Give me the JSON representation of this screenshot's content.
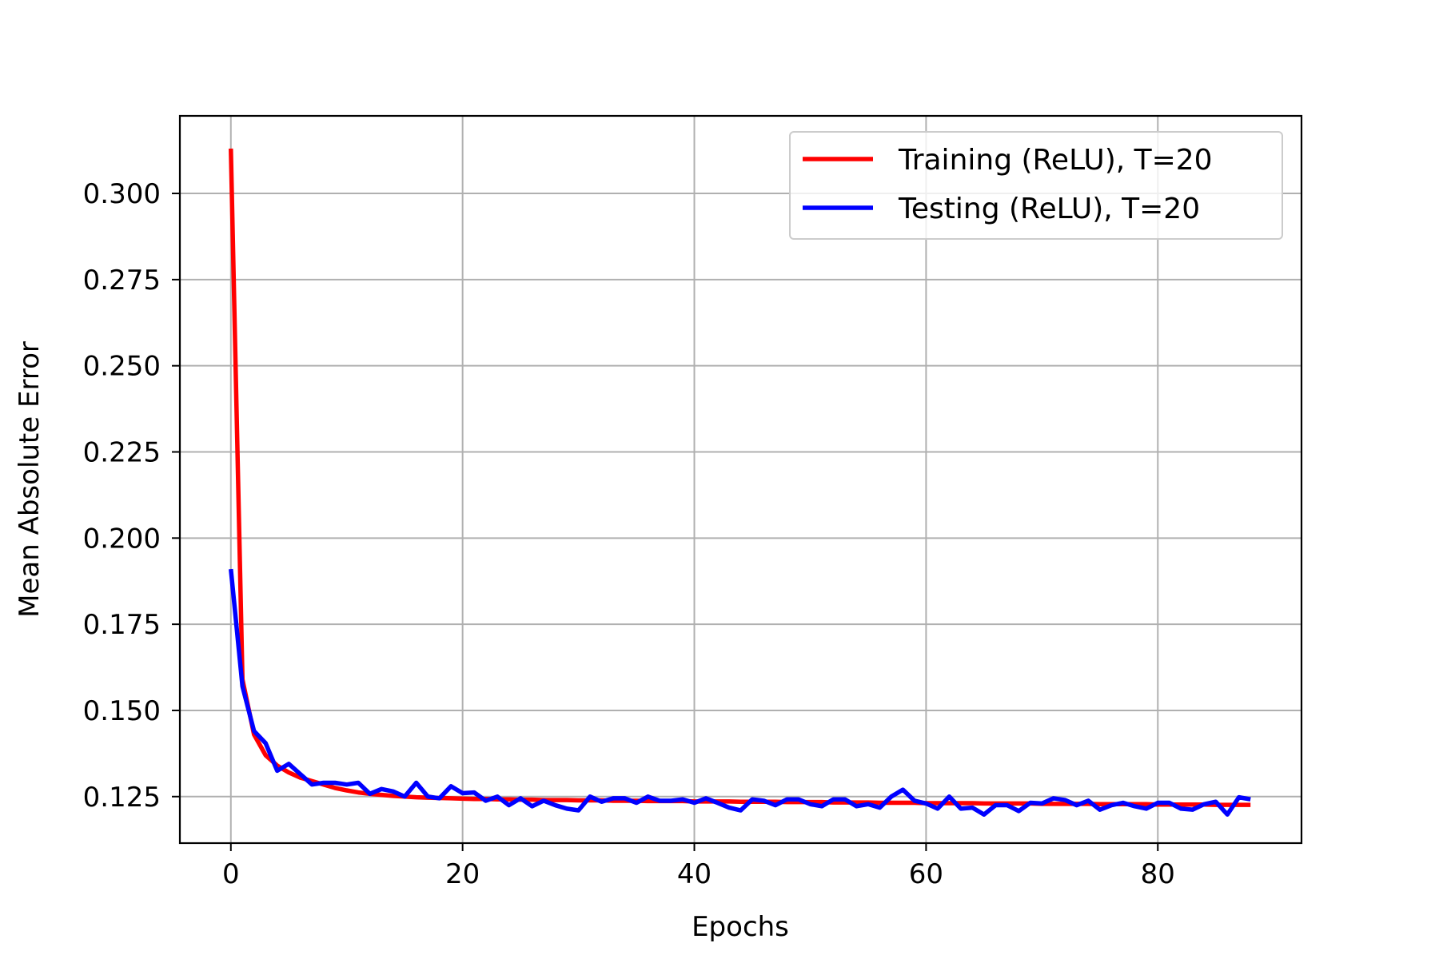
{
  "chart_data": {
    "type": "line",
    "title": "",
    "xlabel": "Epochs",
    "ylabel": "Mean Absolute Error",
    "xlim": [
      -4.4,
      92.4
    ],
    "ylim": [
      0.1115,
      0.3225
    ],
    "xticks": [
      0,
      20,
      40,
      60,
      80
    ],
    "xtick_labels": [
      "0",
      "20",
      "40",
      "60",
      "80"
    ],
    "yticks": [
      0.125,
      0.15,
      0.175,
      0.2,
      0.225,
      0.25,
      0.275,
      0.3
    ],
    "ytick_labels": [
      "0.125",
      "0.150",
      "0.175",
      "0.200",
      "0.225",
      "0.250",
      "0.275",
      "0.300"
    ],
    "grid": true,
    "legend_position": "upper-right",
    "series": [
      {
        "name": "Training (ReLU), T=20",
        "color": "#ff0000",
        "x": [
          0,
          1,
          2,
          3,
          4,
          5,
          6,
          7,
          8,
          9,
          10,
          11,
          12,
          13,
          14,
          15,
          16,
          17,
          18,
          19,
          20,
          21,
          22,
          23,
          24,
          25,
          26,
          27,
          28,
          29,
          30,
          31,
          32,
          33,
          34,
          35,
          36,
          37,
          38,
          39,
          40,
          41,
          42,
          43,
          44,
          45,
          46,
          47,
          48,
          49,
          50,
          51,
          52,
          53,
          54,
          55,
          56,
          57,
          58,
          59,
          60,
          61,
          62,
          63,
          64,
          65,
          66,
          67,
          68,
          69,
          70,
          71,
          72,
          73,
          74,
          75,
          76,
          77,
          78,
          79,
          80,
          81,
          82,
          83,
          84,
          85,
          86,
          87,
          88
        ],
        "y": [
          0.313,
          0.159,
          0.143,
          0.137,
          0.134,
          0.132,
          0.1305,
          0.1295,
          0.1285,
          0.1275,
          0.1268,
          0.1262,
          0.1258,
          0.1255,
          0.1252,
          0.125,
          0.1248,
          0.1247,
          0.1246,
          0.1245,
          0.1244,
          0.1243,
          0.1243,
          0.1242,
          0.1242,
          0.1241,
          0.1241,
          0.124,
          0.124,
          0.124,
          0.1239,
          0.1239,
          0.1239,
          0.1238,
          0.1238,
          0.1238,
          0.1237,
          0.1237,
          0.1237,
          0.1237,
          0.1236,
          0.1236,
          0.1236,
          0.1236,
          0.1235,
          0.1235,
          0.1235,
          0.1235,
          0.1234,
          0.1234,
          0.1234,
          0.1234,
          0.1233,
          0.1233,
          0.1233,
          0.1233,
          0.1232,
          0.1232,
          0.1232,
          0.1232,
          0.1231,
          0.1231,
          0.1231,
          0.1231,
          0.1231,
          0.123,
          0.123,
          0.123,
          0.123,
          0.123,
          0.1229,
          0.1229,
          0.1229,
          0.1229,
          0.1229,
          0.1228,
          0.1228,
          0.1228,
          0.1228,
          0.1228,
          0.1227,
          0.1227,
          0.1227,
          0.1227,
          0.1227,
          0.1226,
          0.1226,
          0.1226,
          0.1226
        ]
      },
      {
        "name": "Testing (ReLU), T=20",
        "color": "#0000ff",
        "x": [
          0,
          1,
          2,
          3,
          4,
          5,
          6,
          7,
          8,
          9,
          10,
          11,
          12,
          13,
          14,
          15,
          16,
          17,
          18,
          19,
          20,
          21,
          22,
          23,
          24,
          25,
          26,
          27,
          28,
          29,
          30,
          31,
          32,
          33,
          34,
          35,
          36,
          37,
          38,
          39,
          40,
          41,
          42,
          43,
          44,
          45,
          46,
          47,
          48,
          49,
          50,
          51,
          52,
          53,
          54,
          55,
          56,
          57,
          58,
          59,
          60,
          61,
          62,
          63,
          64,
          65,
          66,
          67,
          68,
          69,
          70,
          71,
          72,
          73,
          74,
          75,
          76,
          77,
          78,
          79,
          80,
          81,
          82,
          83,
          84,
          85,
          86,
          87,
          88
        ],
        "y": [
          0.191,
          0.157,
          0.144,
          0.1405,
          0.1325,
          0.1345,
          0.1315,
          0.1285,
          0.129,
          0.129,
          0.1285,
          0.129,
          0.1258,
          0.1272,
          0.1265,
          0.125,
          0.129,
          0.125,
          0.1245,
          0.128,
          0.126,
          0.1262,
          0.1238,
          0.125,
          0.1225,
          0.1245,
          0.1222,
          0.1238,
          0.1225,
          0.1215,
          0.121,
          0.125,
          0.1235,
          0.1245,
          0.1245,
          0.1232,
          0.125,
          0.1238,
          0.1238,
          0.1242,
          0.1232,
          0.1245,
          0.1232,
          0.1218,
          0.121,
          0.1242,
          0.1238,
          0.1225,
          0.1242,
          0.1242,
          0.1228,
          0.1222,
          0.1242,
          0.1242,
          0.1222,
          0.1228,
          0.1218,
          0.125,
          0.127,
          0.1238,
          0.123,
          0.1215,
          0.125,
          0.1215,
          0.1218,
          0.1198,
          0.1225,
          0.1225,
          0.1208,
          0.1232,
          0.123,
          0.1245,
          0.124,
          0.1225,
          0.1238,
          0.1212,
          0.1225,
          0.1232,
          0.1222,
          0.1215,
          0.1232,
          0.1232,
          0.1215,
          0.1212,
          0.1228,
          0.1235,
          0.1198,
          0.1248,
          0.1242
        ]
      }
    ]
  }
}
